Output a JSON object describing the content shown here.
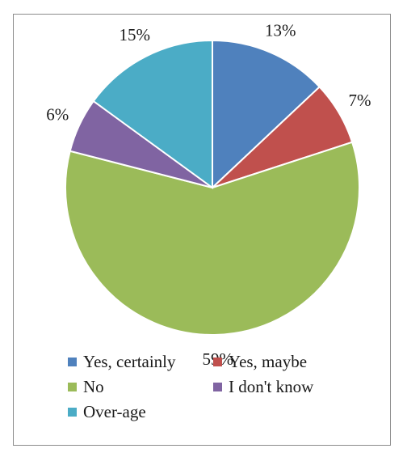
{
  "chart_data": {
    "type": "pie",
    "title": "",
    "start_angle_deg": 0,
    "direction": "clockwise",
    "legend_position": "bottom",
    "slices": [
      {
        "name": "Yes, certainly",
        "value": 13,
        "label": "13%",
        "color": "#4f81bd"
      },
      {
        "name": "Yes, maybe",
        "value": 7,
        "label": "7%",
        "color": "#c0504d"
      },
      {
        "name": "No",
        "value": 59,
        "label": "59%",
        "color": "#9bbb59"
      },
      {
        "name": "I don't know",
        "value": 6,
        "label": "6%",
        "color": "#8064a2"
      },
      {
        "name": "Over-age",
        "value": 15,
        "label": "15%",
        "color": "#4bacc6"
      }
    ]
  }
}
